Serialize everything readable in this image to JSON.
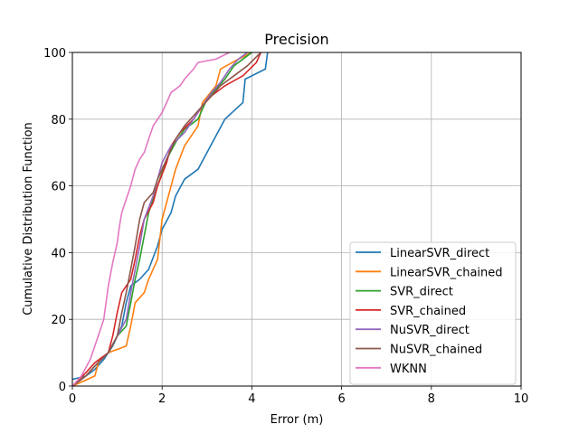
{
  "chart_data": {
    "type": "line",
    "title": "Precision",
    "xlabel": "Error (m)",
    "ylabel": "Cumulative Distribution Function",
    "xlim": [
      0,
      10
    ],
    "ylim": [
      0,
      100
    ],
    "xticks": [
      0,
      2,
      4,
      6,
      8,
      10
    ],
    "yticks": [
      0,
      20,
      40,
      60,
      80,
      100
    ],
    "grid": true,
    "legend_position": "lower-right",
    "series": [
      {
        "name": "LinearSVR_direct",
        "color": "#1f77b4",
        "points": [
          [
            0,
            2
          ],
          [
            0.3,
            3
          ],
          [
            0.5,
            5
          ],
          [
            0.7,
            8
          ],
          [
            0.9,
            12
          ],
          [
            1.1,
            18
          ],
          [
            1.2,
            25
          ],
          [
            1.3,
            30
          ],
          [
            1.5,
            32
          ],
          [
            1.7,
            35
          ],
          [
            1.9,
            42
          ],
          [
            2.0,
            47
          ],
          [
            2.2,
            52
          ],
          [
            2.3,
            57
          ],
          [
            2.5,
            62
          ],
          [
            2.8,
            65
          ],
          [
            3.0,
            70
          ],
          [
            3.2,
            75
          ],
          [
            3.4,
            80
          ],
          [
            3.8,
            85
          ],
          [
            3.85,
            92
          ],
          [
            4.3,
            95
          ],
          [
            4.35,
            100
          ]
        ]
      },
      {
        "name": "LinearSVR_chained",
        "color": "#ff7f0e",
        "points": [
          [
            0,
            0
          ],
          [
            0.5,
            3
          ],
          [
            0.6,
            8
          ],
          [
            0.8,
            10
          ],
          [
            1.2,
            12
          ],
          [
            1.3,
            18
          ],
          [
            1.4,
            25
          ],
          [
            1.6,
            28
          ],
          [
            1.7,
            32
          ],
          [
            1.9,
            38
          ],
          [
            2.0,
            50
          ],
          [
            2.1,
            55
          ],
          [
            2.3,
            65
          ],
          [
            2.5,
            72
          ],
          [
            2.8,
            78
          ],
          [
            2.9,
            85
          ],
          [
            3.2,
            90
          ],
          [
            3.3,
            95
          ],
          [
            3.7,
            98
          ],
          [
            4.0,
            100
          ]
        ]
      },
      {
        "name": "SVR_direct",
        "color": "#2ca02c",
        "points": [
          [
            0,
            0
          ],
          [
            0.3,
            3
          ],
          [
            0.5,
            6
          ],
          [
            0.8,
            10
          ],
          [
            1.0,
            15
          ],
          [
            1.2,
            18
          ],
          [
            1.3,
            25
          ],
          [
            1.4,
            32
          ],
          [
            1.5,
            38
          ],
          [
            1.6,
            45
          ],
          [
            1.7,
            52
          ],
          [
            1.9,
            60
          ],
          [
            2.1,
            68
          ],
          [
            2.3,
            73
          ],
          [
            2.5,
            77
          ],
          [
            2.8,
            80
          ],
          [
            2.9,
            83
          ],
          [
            3.0,
            86
          ],
          [
            3.2,
            89
          ],
          [
            3.4,
            92
          ],
          [
            3.6,
            96
          ],
          [
            3.9,
            99
          ],
          [
            4.0,
            100
          ]
        ]
      },
      {
        "name": "SVR_chained",
        "color": "#d62728",
        "points": [
          [
            0,
            0
          ],
          [
            0.3,
            4
          ],
          [
            0.5,
            7
          ],
          [
            0.8,
            10
          ],
          [
            0.9,
            15
          ],
          [
            1.0,
            22
          ],
          [
            1.1,
            28
          ],
          [
            1.3,
            32
          ],
          [
            1.4,
            38
          ],
          [
            1.5,
            45
          ],
          [
            1.6,
            50
          ],
          [
            1.8,
            55
          ],
          [
            1.9,
            60
          ],
          [
            2.1,
            67
          ],
          [
            2.2,
            72
          ],
          [
            2.4,
            76
          ],
          [
            2.7,
            80
          ],
          [
            2.9,
            84
          ],
          [
            3.1,
            87
          ],
          [
            3.4,
            90
          ],
          [
            3.8,
            93
          ],
          [
            4.1,
            97
          ],
          [
            4.2,
            100
          ]
        ]
      },
      {
        "name": "NuSVR_direct",
        "color": "#9467bd",
        "points": [
          [
            0,
            0
          ],
          [
            0.3,
            3
          ],
          [
            0.5,
            6
          ],
          [
            0.8,
            10
          ],
          [
            1.0,
            15
          ],
          [
            1.2,
            20
          ],
          [
            1.3,
            28
          ],
          [
            1.4,
            35
          ],
          [
            1.5,
            42
          ],
          [
            1.6,
            50
          ],
          [
            1.8,
            57
          ],
          [
            1.9,
            62
          ],
          [
            2.0,
            67
          ],
          [
            2.2,
            72
          ],
          [
            2.5,
            76
          ],
          [
            2.7,
            80
          ],
          [
            2.9,
            84
          ],
          [
            3.1,
            88
          ],
          [
            3.3,
            91
          ],
          [
            3.5,
            95
          ],
          [
            3.7,
            98
          ],
          [
            3.9,
            100
          ]
        ]
      },
      {
        "name": "NuSVR_chained",
        "color": "#8c564b",
        "points": [
          [
            0,
            0
          ],
          [
            0.3,
            3
          ],
          [
            0.5,
            6
          ],
          [
            0.8,
            10
          ],
          [
            1.0,
            15
          ],
          [
            1.1,
            22
          ],
          [
            1.2,
            28
          ],
          [
            1.3,
            35
          ],
          [
            1.4,
            42
          ],
          [
            1.5,
            50
          ],
          [
            1.6,
            55
          ],
          [
            1.8,
            58
          ],
          [
            1.9,
            62
          ],
          [
            2.1,
            68
          ],
          [
            2.3,
            74
          ],
          [
            2.5,
            78
          ],
          [
            2.7,
            81
          ],
          [
            2.9,
            84
          ],
          [
            3.1,
            87
          ],
          [
            3.3,
            90
          ],
          [
            3.6,
            93
          ],
          [
            3.9,
            96
          ],
          [
            4.2,
            100
          ]
        ]
      },
      {
        "name": "WKNN",
        "color": "#e377c2",
        "points": [
          [
            0,
            0
          ],
          [
            0.2,
            3
          ],
          [
            0.4,
            8
          ],
          [
            0.5,
            12
          ],
          [
            0.6,
            16
          ],
          [
            0.7,
            20
          ],
          [
            0.75,
            25
          ],
          [
            0.8,
            30
          ],
          [
            0.9,
            37
          ],
          [
            1.0,
            43
          ],
          [
            1.05,
            48
          ],
          [
            1.1,
            52
          ],
          [
            1.2,
            56
          ],
          [
            1.3,
            60
          ],
          [
            1.4,
            65
          ],
          [
            1.5,
            68
          ],
          [
            1.6,
            70
          ],
          [
            1.7,
            74
          ],
          [
            1.8,
            78
          ],
          [
            2.0,
            82
          ],
          [
            2.1,
            85
          ],
          [
            2.2,
            88
          ],
          [
            2.4,
            90
          ],
          [
            2.5,
            92
          ],
          [
            2.7,
            95
          ],
          [
            2.8,
            97
          ],
          [
            3.2,
            98
          ],
          [
            3.5,
            100
          ]
        ]
      }
    ]
  }
}
